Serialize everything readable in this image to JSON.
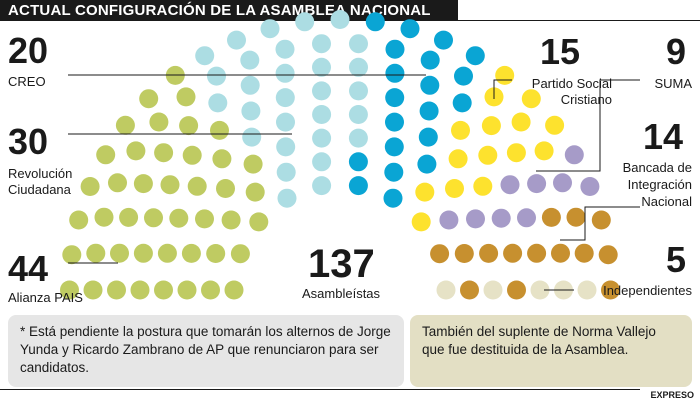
{
  "title": "ACTUAL CONFIGURACIÓN DE LA ASAMBLEA NACIONAL",
  "chart_data": {
    "type": "parliament",
    "total": {
      "value": "137",
      "label": "Asambleístas"
    },
    "parties": [
      {
        "name": "Alianza PAIS",
        "seats": 44,
        "color": "#bfcb62"
      },
      {
        "name": "Revolución Ciudadana",
        "seats": 30,
        "color": "#acdde3"
      },
      {
        "name": "CREO",
        "seats": 20,
        "color": "#0aa5d4"
      },
      {
        "name": "Partido Social Cristiano",
        "seats": 15,
        "color": "#fde22e"
      },
      {
        "name": "SUMA",
        "seats": 9,
        "color": "#a69bc8"
      },
      {
        "name": "Bancada de Integración Nacional",
        "seats": 14,
        "color": "#c7902f"
      },
      {
        "name": "Independientes",
        "seats": 5,
        "color": "#e6e2c6"
      }
    ]
  },
  "labels": {
    "creo": {
      "value": "20",
      "name": "CREO"
    },
    "rc": {
      "value": "30",
      "name1": "Revolución",
      "name2": "Ciudadana"
    },
    "ap": {
      "value": "44",
      "name": "Alianza PAIS"
    },
    "psc": {
      "value": "15",
      "name1": "Partido Social",
      "name2": "Cristiano"
    },
    "suma": {
      "value": "9",
      "name": "SUMA"
    },
    "bin": {
      "value": "14",
      "name1": "Bancada de",
      "name2": "Integración",
      "name3": "Nacional"
    },
    "ind": {
      "value": "5",
      "name": "Independientes"
    }
  },
  "notes": {
    "left": "* Está pendiente la postura que tomarán los alternos de Jorge Yunda y Ricardo Zambrano de AP que renunciaron para ser candidatos.",
    "right": "También del suplente de Norma Vallejo que fue destituida de la Asamblea."
  },
  "source": "EXPRESO"
}
